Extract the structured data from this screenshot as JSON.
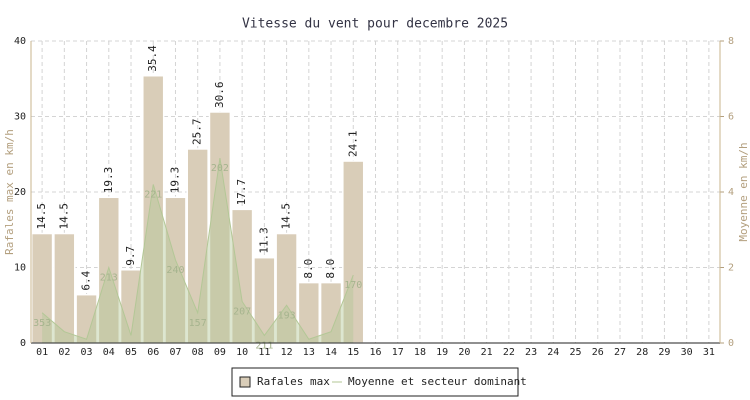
{
  "chart_data": {
    "type": "bar",
    "title": "Vitesse du vent pour decembre 2025",
    "y_label": "Rafales max en km/h",
    "y2_label": "Moyenne en km/h",
    "categories": [
      "01",
      "02",
      "03",
      "04",
      "05",
      "06",
      "07",
      "08",
      "09",
      "10",
      "11",
      "12",
      "13",
      "14",
      "15",
      "16",
      "17",
      "18",
      "19",
      "20",
      "21",
      "22",
      "23",
      "24",
      "25",
      "26",
      "27",
      "28",
      "29",
      "30",
      "31"
    ],
    "series": [
      {
        "name": "Rafales max",
        "color": "#d9cdb8",
        "values": [
          14.5,
          14.5,
          6.4,
          19.3,
          9.7,
          35.4,
          19.3,
          25.7,
          30.6,
          17.7,
          11.3,
          14.5,
          8,
          8,
          24.1,
          null,
          null,
          null,
          null,
          null,
          null,
          null,
          null,
          null,
          null,
          null,
          null,
          null,
          null,
          null,
          null
        ],
        "value_labels": [
          "14.5",
          "14.5",
          "6.4",
          "19.3",
          "9.7",
          "35.4",
          "19.3",
          "25.7",
          "30.6",
          "17.7",
          "11.3",
          "14.5",
          "8.0",
          "8.0",
          "24.1",
          null,
          null,
          null,
          null,
          null,
          null,
          null,
          null,
          null,
          null,
          null,
          null,
          null,
          null,
          null,
          null
        ]
      },
      {
        "name": "Moyenne et secteur dominant",
        "color": "#b3c796",
        "axis": "y2",
        "type": "area",
        "values": [
          0.8,
          0.3,
          0.1,
          2.0,
          0.2,
          4.2,
          2.2,
          0.8,
          4.9,
          1.1,
          0.2,
          1.0,
          0.1,
          0.3,
          1.8,
          null,
          null,
          null,
          null,
          null,
          null,
          null,
          null,
          null,
          null,
          null,
          null,
          null,
          null,
          null,
          null
        ],
        "directions": [
          "353",
          null,
          null,
          "213",
          null,
          "221",
          "240",
          "157",
          "202",
          "207",
          "211",
          "193",
          null,
          null,
          "170",
          null,
          null,
          null,
          null,
          null,
          null,
          null,
          null,
          null,
          null,
          null,
          null,
          null,
          null,
          null,
          null
        ]
      }
    ],
    "ylim": [
      0,
      40
    ],
    "yticks": [
      0,
      10,
      20,
      30,
      40
    ],
    "y2lim": [
      0,
      8
    ],
    "y2ticks": [
      0,
      2,
      4,
      6,
      8
    ],
    "grid": true,
    "legend": "bottom"
  }
}
